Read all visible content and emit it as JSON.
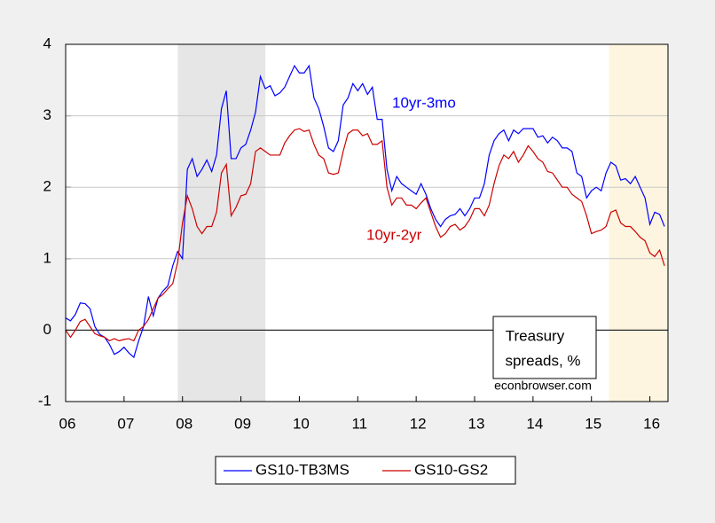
{
  "chart_data": {
    "type": "line",
    "x": [
      2006,
      2006.083,
      2006.167,
      2006.25,
      2006.333,
      2006.417,
      2006.5,
      2006.583,
      2006.667,
      2006.75,
      2006.833,
      2006.917,
      2007,
      2007.083,
      2007.167,
      2007.25,
      2007.333,
      2007.417,
      2007.5,
      2007.583,
      2007.667,
      2007.75,
      2007.833,
      2007.917,
      2008,
      2008.083,
      2008.167,
      2008.25,
      2008.333,
      2008.417,
      2008.5,
      2008.583,
      2008.667,
      2008.75,
      2008.833,
      2008.917,
      2009,
      2009.083,
      2009.167,
      2009.25,
      2009.333,
      2009.417,
      2009.5,
      2009.583,
      2009.667,
      2009.75,
      2009.833,
      2009.917,
      2010,
      2010.083,
      2010.167,
      2010.25,
      2010.333,
      2010.417,
      2010.5,
      2010.583,
      2010.667,
      2010.75,
      2010.833,
      2010.917,
      2011,
      2011.083,
      2011.167,
      2011.25,
      2011.333,
      2011.417,
      2011.5,
      2011.583,
      2011.667,
      2011.75,
      2011.833,
      2011.917,
      2012,
      2012.083,
      2012.167,
      2012.25,
      2012.333,
      2012.417,
      2012.5,
      2012.583,
      2012.667,
      2012.75,
      2012.833,
      2012.917,
      2013,
      2013.083,
      2013.167,
      2013.25,
      2013.333,
      2013.417,
      2013.5,
      2013.583,
      2013.667,
      2013.75,
      2013.833,
      2013.917,
      2014,
      2014.083,
      2014.167,
      2014.25,
      2014.333,
      2014.417,
      2014.5,
      2014.583,
      2014.667,
      2014.75,
      2014.833,
      2014.917,
      2015,
      2015.083,
      2015.167,
      2015.25,
      2015.333,
      2015.417,
      2015.5,
      2015.583,
      2015.667,
      2015.75,
      2015.833,
      2015.917,
      2016,
      2016.083,
      2016.167,
      2016.25
    ],
    "series": [
      {
        "name": "GS10-TB3MS",
        "color": "#0000ff",
        "values": [
          0.17,
          0.13,
          0.22,
          0.38,
          0.37,
          0.3,
          0.05,
          -0.06,
          -0.1,
          -0.2,
          -0.34,
          -0.3,
          -0.24,
          -0.32,
          -0.38,
          -0.15,
          0.05,
          0.47,
          0.2,
          0.45,
          0.55,
          0.62,
          0.9,
          1.1,
          1.0,
          2.25,
          2.4,
          2.15,
          2.25,
          2.38,
          2.22,
          2.45,
          3.1,
          3.35,
          2.4,
          2.4,
          2.55,
          2.6,
          2.8,
          3.05,
          3.55,
          3.38,
          3.42,
          3.28,
          3.32,
          3.4,
          3.55,
          3.7,
          3.6,
          3.6,
          3.7,
          3.25,
          3.1,
          2.85,
          2.55,
          2.5,
          2.65,
          3.15,
          3.25,
          3.45,
          3.35,
          3.45,
          3.3,
          3.4,
          2.95,
          2.95,
          2.25,
          1.95,
          2.15,
          2.05,
          2.0,
          1.95,
          1.9,
          2.05,
          1.9,
          1.7,
          1.55,
          1.45,
          1.55,
          1.6,
          1.62,
          1.7,
          1.6,
          1.7,
          1.85,
          1.85,
          2.05,
          2.45,
          2.65,
          2.75,
          2.8,
          2.65,
          2.8,
          2.75,
          2.82,
          2.82,
          2.82,
          2.7,
          2.72,
          2.62,
          2.7,
          2.65,
          2.55,
          2.55,
          2.5,
          2.2,
          2.15,
          1.85,
          1.95,
          2.0,
          1.95,
          2.2,
          2.35,
          2.3,
          2.1,
          2.12,
          2.05,
          2.15,
          2.0,
          1.85,
          1.48,
          1.65,
          1.62,
          1.45
        ]
      },
      {
        "name": "GS10-GS2",
        "color": "#cc0000",
        "values": [
          0.0,
          -0.1,
          0.0,
          0.12,
          0.15,
          0.05,
          -0.05,
          -0.08,
          -0.1,
          -0.15,
          -0.12,
          -0.15,
          -0.13,
          -0.12,
          -0.15,
          0.0,
          0.05,
          0.15,
          0.3,
          0.45,
          0.5,
          0.58,
          0.65,
          0.95,
          1.5,
          1.88,
          1.7,
          1.45,
          1.35,
          1.45,
          1.45,
          1.65,
          2.2,
          2.32,
          1.6,
          1.72,
          1.88,
          1.9,
          2.05,
          2.5,
          2.55,
          2.5,
          2.45,
          2.45,
          2.45,
          2.62,
          2.72,
          2.8,
          2.82,
          2.78,
          2.8,
          2.6,
          2.45,
          2.4,
          2.2,
          2.18,
          2.2,
          2.5,
          2.75,
          2.8,
          2.8,
          2.72,
          2.75,
          2.6,
          2.6,
          2.65,
          2.0,
          1.75,
          1.85,
          1.85,
          1.75,
          1.75,
          1.7,
          1.78,
          1.85,
          1.65,
          1.45,
          1.3,
          1.35,
          1.45,
          1.48,
          1.4,
          1.45,
          1.55,
          1.7,
          1.7,
          1.6,
          1.75,
          2.05,
          2.3,
          2.45,
          2.4,
          2.5,
          2.35,
          2.45,
          2.58,
          2.5,
          2.4,
          2.35,
          2.22,
          2.2,
          2.1,
          2.0,
          2.0,
          1.9,
          1.85,
          1.8,
          1.6,
          1.35,
          1.38,
          1.4,
          1.45,
          1.65,
          1.68,
          1.5,
          1.45,
          1.45,
          1.38,
          1.3,
          1.25,
          1.08,
          1.03,
          1.12,
          0.9
        ]
      }
    ],
    "xlim": [
      2006,
      2016.31
    ],
    "xticks": [
      {
        "value": 2006,
        "label": "06"
      },
      {
        "value": 2007,
        "label": "07"
      },
      {
        "value": 2008,
        "label": "08"
      },
      {
        "value": 2009,
        "label": "09"
      },
      {
        "value": 2010,
        "label": "10"
      },
      {
        "value": 2011,
        "label": "11"
      },
      {
        "value": 2012,
        "label": "12"
      },
      {
        "value": 2013,
        "label": "13"
      },
      {
        "value": 2014,
        "label": "14"
      },
      {
        "value": 2015,
        "label": "15"
      },
      {
        "value": 2016,
        "label": "16"
      }
    ],
    "ylim": [
      -1,
      4
    ],
    "yticks": [
      -1,
      0,
      1,
      2,
      3,
      4
    ],
    "grid": true,
    "hline": 0,
    "shaded_regions": [
      {
        "start": 2007.92,
        "end": 2009.42,
        "color": "#e6e6e6"
      },
      {
        "start": 2015.3,
        "end": 2016.31,
        "color": "#fdf5df"
      }
    ],
    "annotations": [
      "10yr-3mo",
      "10yr-2yr"
    ],
    "box_text": [
      "Treasury",
      "spreads, %"
    ],
    "source": "econbrowser.com",
    "legend": "bottom"
  }
}
